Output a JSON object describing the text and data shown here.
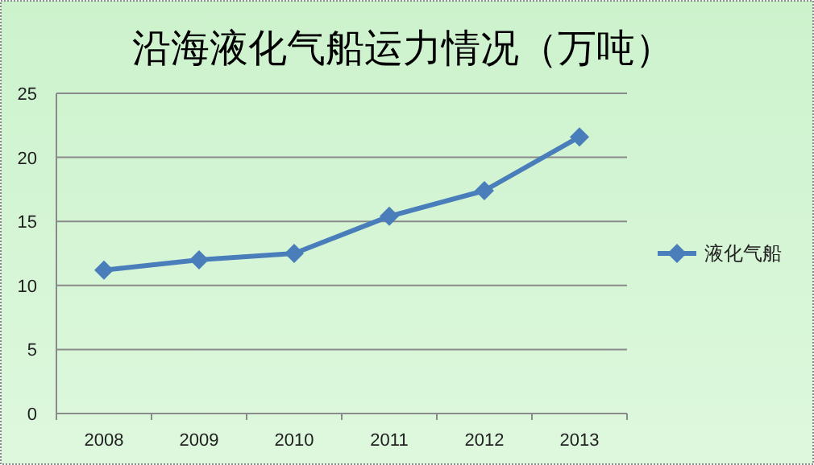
{
  "chart_data": {
    "type": "line",
    "title": "沿海液化气船运力情况（万吨）",
    "categories": [
      "2008",
      "2009",
      "2010",
      "2011",
      "2012",
      "2013"
    ],
    "series": [
      {
        "name": "液化气船",
        "color": "#4a7ebb",
        "values": [
          11.2,
          12.0,
          12.5,
          15.4,
          17.4,
          21.6
        ]
      }
    ],
    "ylim": [
      0,
      25
    ],
    "yticks": [
      0,
      5,
      10,
      15,
      20,
      25
    ],
    "grid": "y",
    "legend": "right",
    "marker": "diamond"
  }
}
